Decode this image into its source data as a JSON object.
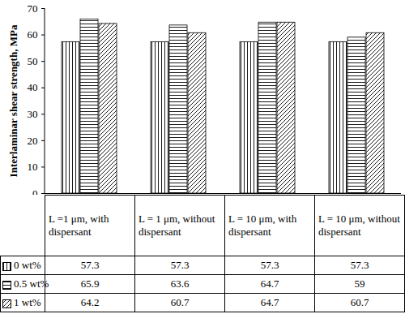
{
  "chart_data": {
    "type": "bar",
    "y_label": "Interlaminar shear strength, MPa",
    "categories": [
      "L =1 μm, with dispersant",
      "L = 1 μm, without dispersant",
      "L = 10 μm, with dispersant",
      "L = 10 μm, without dispersant"
    ],
    "series": [
      {
        "name": "0 wt%",
        "color": "#000000",
        "values": [
          57.3,
          57.3,
          57.3,
          57.3
        ]
      },
      {
        "name": "0.5 wt%",
        "color": "#000000",
        "values": [
          65.9,
          63.6,
          64.7,
          59
        ]
      },
      {
        "name": "1 wt%",
        "color": "#000000",
        "values": [
          64.2,
          60.7,
          64.7,
          60.7
        ]
      }
    ],
    "ylim": [
      0,
      70
    ],
    "yticks": [
      0,
      10,
      20,
      30,
      40,
      50,
      60,
      70
    ],
    "grid": false
  }
}
